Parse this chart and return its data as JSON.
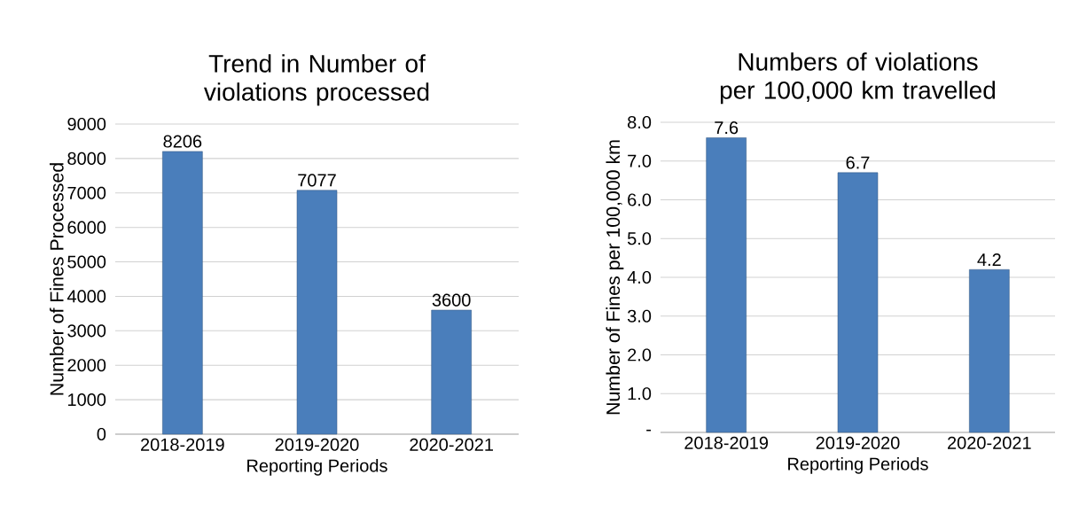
{
  "chart_data": [
    {
      "type": "bar",
      "title": "Trend in Number of violations processed",
      "xlabel": "Reporting Periods",
      "ylabel": "Number of Fines Processed",
      "categories": [
        "2018-2019",
        "2019-2020",
        "2020-2021"
      ],
      "values": [
        8206,
        7077,
        3600
      ],
      "color": "#4a7ebb",
      "ylim": [
        0,
        9000
      ],
      "yticks": [
        0,
        1000,
        2000,
        3000,
        4000,
        5000,
        6000,
        7000,
        8000,
        9000
      ],
      "grid": "y",
      "data_labels": true
    },
    {
      "type": "bar",
      "title": "Numbers of violations per 100,000 km travelled",
      "xlabel": "Reporting Periods",
      "ylabel": "Number of Fines per 100,000 km",
      "categories": [
        "2018-2019",
        "2019-2020",
        "2020-2021"
      ],
      "values": [
        7.6,
        6.7,
        4.2
      ],
      "color": "#4a7ebb",
      "ylim": [
        0,
        8
      ],
      "yticks": [
        {
          "value": 0,
          "label": "-"
        },
        {
          "value": 1,
          "label": "1.0"
        },
        {
          "value": 2,
          "label": "2.0"
        },
        {
          "value": 3,
          "label": "3.0"
        },
        {
          "value": 4,
          "label": "4.0"
        },
        {
          "value": 5,
          "label": "5.0"
        },
        {
          "value": 6,
          "label": "6.0"
        },
        {
          "value": 7,
          "label": "7.0"
        },
        {
          "value": 8,
          "label": "8.0"
        }
      ],
      "grid": "y",
      "data_labels": true
    }
  ]
}
